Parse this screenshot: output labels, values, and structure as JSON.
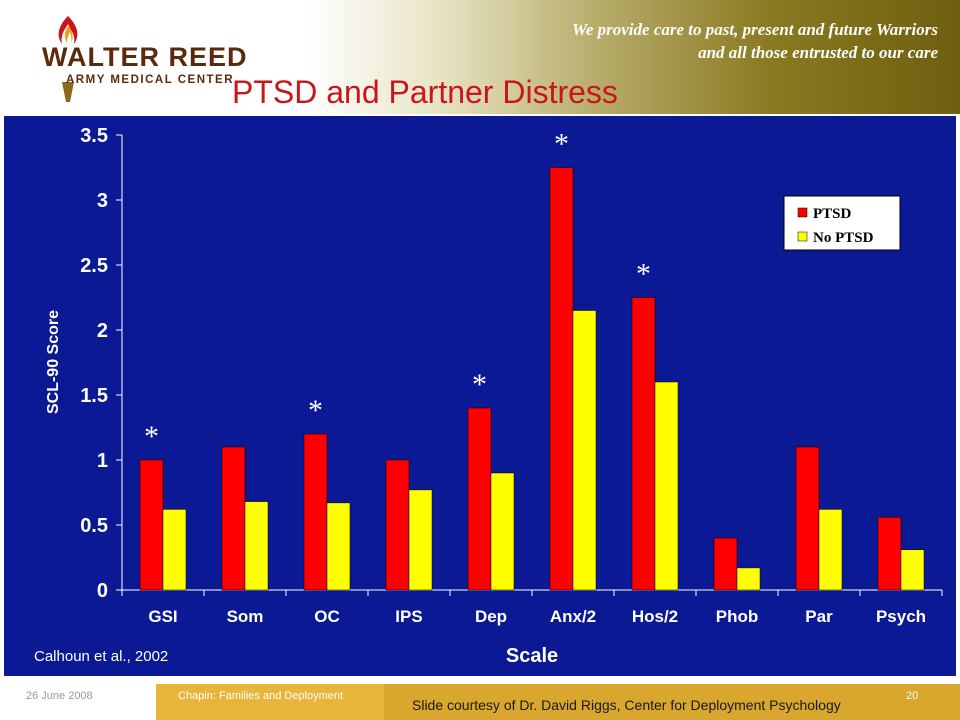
{
  "header": {
    "logo_name": "WALTER REED",
    "logo_sub": "ARMY MEDICAL CENTER",
    "tagline_line1": "We provide care to past, present and future Warriors",
    "tagline_line2": "and all those entrusted to our care"
  },
  "slide": {
    "title": "PTSD and Partner Distress",
    "citation": "Calhoun et al., 2002"
  },
  "footer": {
    "date": "26 June 2008",
    "center": "Chapin: Families and Deployment",
    "page": "20",
    "credit": "Slide courtesy of Dr. David Riggs, Center for Deployment Psychology"
  },
  "colors": {
    "panel_bg": "#0b1a94",
    "ptsd": "#ff0000",
    "no_ptsd": "#ffff00",
    "title": "#c8161c"
  },
  "chart_data": {
    "type": "bar",
    "xlabel": "Scale",
    "ylabel": "SCL-90 Score",
    "ylim": [
      0,
      3.5
    ],
    "yticks": [
      "0",
      "0.5",
      "1",
      "1.5",
      "2",
      "2.5",
      "3",
      "3.5"
    ],
    "categories": [
      "GSI",
      "Som",
      "OC",
      "IPS",
      "Dep",
      "Anx/2",
      "Hos/2",
      "Phob",
      "Par",
      "Psych"
    ],
    "series": [
      {
        "name": "PTSD",
        "values": [
          1.0,
          1.1,
          1.2,
          1.0,
          1.4,
          3.25,
          2.25,
          0.4,
          1.1,
          0.56
        ]
      },
      {
        "name": "No PTSD",
        "values": [
          0.62,
          0.68,
          0.67,
          0.77,
          0.9,
          2.15,
          1.6,
          0.17,
          0.62,
          0.31
        ]
      }
    ],
    "significance_marker": "*",
    "significant": [
      true,
      false,
      true,
      false,
      true,
      true,
      true,
      false,
      false,
      false
    ],
    "legend_position": "top-right",
    "grid": false
  }
}
